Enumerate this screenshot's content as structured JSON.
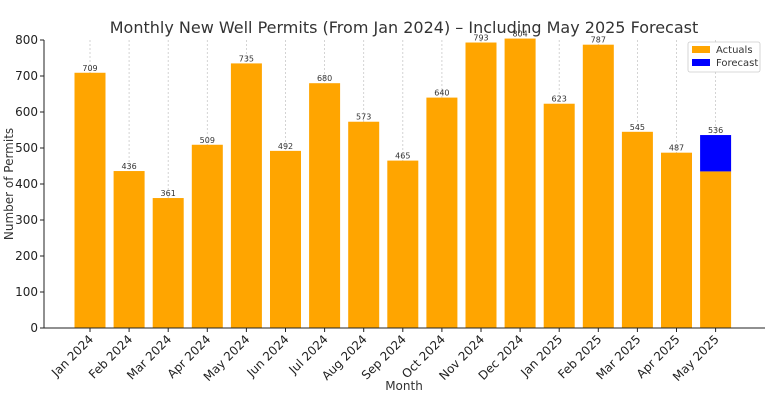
{
  "chart_data": {
    "type": "bar",
    "title": "Monthly New Well Permits (From Jan 2024) – Including May 2025 Forecast",
    "xlabel": "Month",
    "ylabel": "Number of Permits",
    "ylim": [
      0,
      800
    ],
    "yticks": [
      0,
      100,
      200,
      300,
      400,
      500,
      600,
      700,
      800
    ],
    "grid": "vertical-dashed",
    "legend_position": "top-right",
    "colors": {
      "actuals": "#FFA500",
      "forecast": "#0000FF"
    },
    "categories": [
      "Jan 2024",
      "Feb 2024",
      "Mar 2024",
      "Apr 2024",
      "May 2024",
      "Jun 2024",
      "Jul 2024",
      "Aug 2024",
      "Sep 2024",
      "Oct 2024",
      "Nov 2024",
      "Dec 2024",
      "Jan 2025",
      "Feb 2025",
      "Mar 2025",
      "Apr 2025",
      "May 2025"
    ],
    "series": [
      {
        "name": "Actuals",
        "values": [
          709,
          436,
          361,
          509,
          735,
          492,
          680,
          573,
          465,
          640,
          793,
          804,
          623,
          787,
          545,
          487,
          435
        ]
      },
      {
        "name": "Forecast",
        "values": [
          null,
          null,
          null,
          null,
          null,
          null,
          null,
          null,
          null,
          null,
          null,
          null,
          null,
          null,
          null,
          null,
          536
        ]
      }
    ],
    "data_labels": [
      "709",
      "436",
      "361",
      "509",
      "735",
      "492",
      "680",
      "573",
      "465",
      "640",
      "793",
      "804",
      "623",
      "787",
      "545",
      "487",
      "536"
    ]
  }
}
